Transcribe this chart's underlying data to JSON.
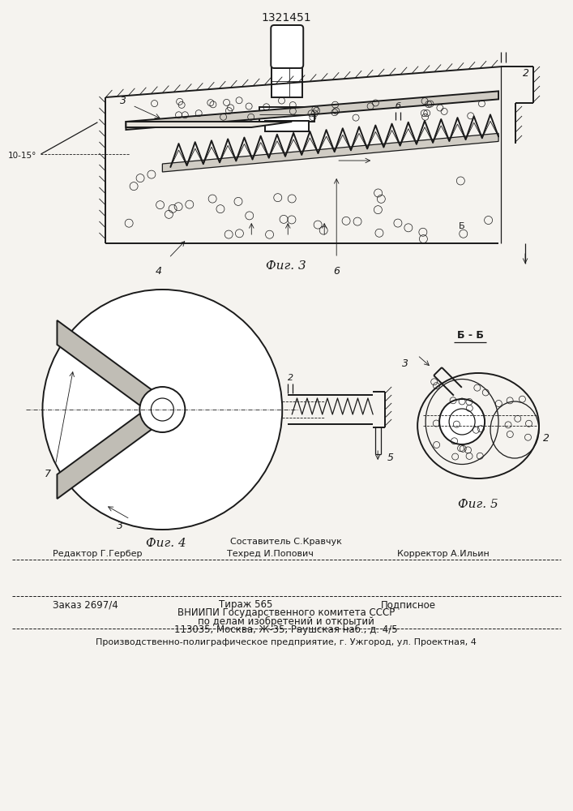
{
  "title": "1321451",
  "bg": "#f5f3ef",
  "lc": "#1a1a1a",
  "fig3_caption": "Фиг. 3",
  "fig4_caption": "Фиг. 4",
  "fig5_caption": "Фиг. 5",
  "bb_caption": "Б - Б",
  "angle_label": "10-15°",
  "footer_line0": "Составитель С.Кравчук",
  "footer_line1_left": "Редактор Г.Гербер",
  "footer_line1_mid": "Техред И.Попович",
  "footer_line1_right": "Корректор А.Ильин",
  "footer_line2_left": "Заказ 2697/4",
  "footer_line2_mid": "Тираж 565",
  "footer_line2_right": "Подписное",
  "footer_line3": "ВНИИПИ Государственного комитета СССР",
  "footer_line4": "по делам изобретений и открытий",
  "footer_line5": "113035, Москва, Ж-35, Раушская наб., д. 4/5",
  "footer_line6": "Производственно-полиграфическое предприятие, г. Ужгород, ул. Проектная, 4"
}
